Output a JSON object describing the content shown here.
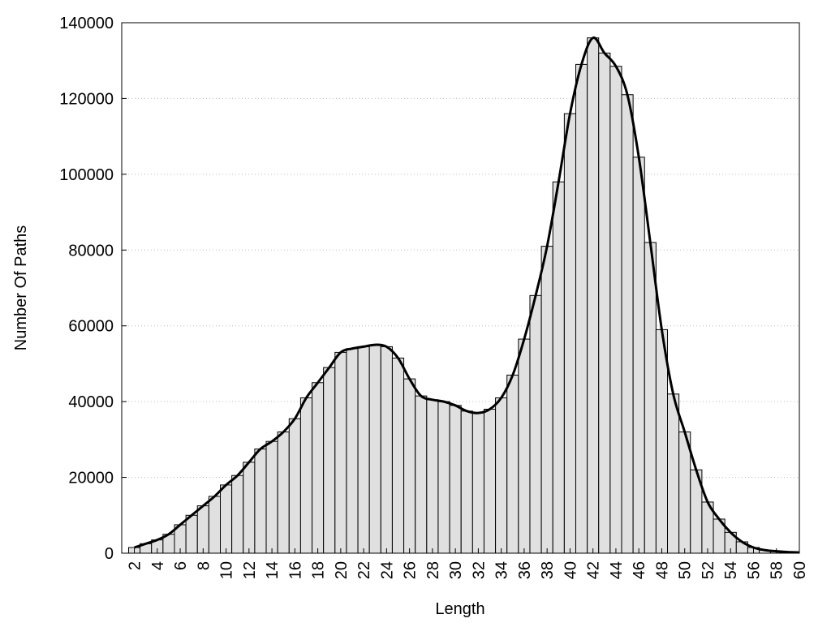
{
  "chart_data": {
    "type": "bar",
    "x_label": "Length",
    "y_label": "Number Of Paths",
    "x": [
      2,
      3,
      4,
      5,
      6,
      7,
      8,
      9,
      10,
      11,
      12,
      13,
      14,
      15,
      16,
      17,
      18,
      19,
      20,
      21,
      22,
      23,
      24,
      25,
      26,
      27,
      28,
      29,
      30,
      31,
      32,
      33,
      34,
      35,
      36,
      37,
      38,
      39,
      40,
      41,
      42,
      43,
      44,
      45,
      46,
      47,
      48,
      49,
      50,
      51,
      52,
      53,
      54,
      55,
      56,
      57,
      58,
      59,
      60
    ],
    "values": [
      1500,
      2500,
      3500,
      5000,
      7500,
      10000,
      12500,
      15000,
      18000,
      20500,
      24000,
      27500,
      29500,
      32000,
      35500,
      41000,
      45000,
      49000,
      53000,
      54000,
      54500,
      55000,
      54500,
      51500,
      46000,
      41500,
      40500,
      40000,
      39000,
      37500,
      37000,
      38000,
      41000,
      47000,
      56500,
      68000,
      81000,
      98000,
      116000,
      129000,
      136000,
      132000,
      128500,
      121000,
      104500,
      82000,
      59000,
      42000,
      32000,
      22000,
      13500,
      9000,
      5500,
      3000,
      1500,
      800,
      500,
      300,
      200
    ],
    "color": "#e0e0e0",
    "line_color": "#000000",
    "smooth_line": true,
    "xlim": [
      0.9,
      60
    ],
    "xticks": [
      2,
      4,
      6,
      8,
      10,
      12,
      14,
      16,
      18,
      20,
      22,
      24,
      26,
      28,
      30,
      32,
      34,
      36,
      38,
      40,
      42,
      44,
      46,
      48,
      50,
      52,
      54,
      56,
      58,
      60
    ],
    "ylim": [
      0,
      140000
    ],
    "yticks": [
      0,
      20000,
      40000,
      60000,
      80000,
      100000,
      120000,
      140000
    ],
    "grid": true
  }
}
